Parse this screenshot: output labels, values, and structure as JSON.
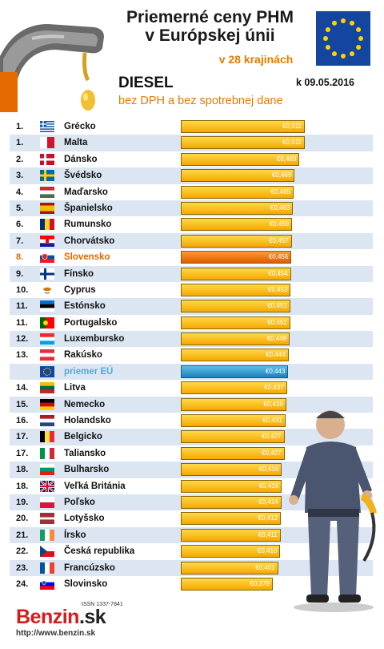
{
  "header": {
    "title_line1": "Priemerné ceny PHM",
    "title_line2": "v Európskej únii",
    "subtitle": "v 28 krajinách",
    "fuel": "DIESEL",
    "date": "k 09.05.2016",
    "note": "bez DPH a bez spotrebnej dane"
  },
  "colors": {
    "accent": "#e07b00",
    "bar": "#f5a800",
    "highlight_bar": "#e05a00",
    "eu_bar": "#1b7fb8",
    "row_alt": "#dce6f3"
  },
  "chart_data": {
    "type": "bar",
    "orientation": "horizontal",
    "unit": "€",
    "xlim": [
      0.0,
      0.511
    ],
    "grid": false,
    "rows": [
      {
        "rank": "1.",
        "country": "Grécko",
        "flag": "greece",
        "value": 0.511,
        "label": "€0,511"
      },
      {
        "rank": "1.",
        "country": "Malta",
        "flag": "malta",
        "value": 0.511,
        "label": "€0,511"
      },
      {
        "rank": "2.",
        "country": "Dánsko",
        "flag": "denmark",
        "value": 0.489,
        "label": "€0,489"
      },
      {
        "rank": "3.",
        "country": "Švédsko",
        "flag": "sweden",
        "value": 0.469,
        "label": "€0,469"
      },
      {
        "rank": "4.",
        "country": "Maďarsko",
        "flag": "hungary",
        "value": 0.465,
        "label": "€0,465"
      },
      {
        "rank": "5.",
        "country": "Španielsko",
        "flag": "spain",
        "value": 0.463,
        "label": "€0,463"
      },
      {
        "rank": "6.",
        "country": "Rumunsko",
        "flag": "romania",
        "value": 0.459,
        "label": "€0,459"
      },
      {
        "rank": "7.",
        "country": "Chorvátsko",
        "flag": "croatia",
        "value": 0.457,
        "label": "€0,457"
      },
      {
        "rank": "8.",
        "country": "Slovensko",
        "flag": "slovakia",
        "value": 0.456,
        "label": "€0,456",
        "highlight": true
      },
      {
        "rank": "9.",
        "country": "Fínsko",
        "flag": "finland",
        "value": 0.454,
        "label": "€0,454"
      },
      {
        "rank": "10.",
        "country": "Cyprus",
        "flag": "cyprus",
        "value": 0.453,
        "label": "€0,453"
      },
      {
        "rank": "11.",
        "country": "Estónsko",
        "flag": "estonia",
        "value": 0.451,
        "label": "€0,451"
      },
      {
        "rank": "11.",
        "country": "Portugalsko",
        "flag": "portugal",
        "value": 0.451,
        "label": "€0,451"
      },
      {
        "rank": "12.",
        "country": "Luxembursko",
        "flag": "luxembourg",
        "value": 0.449,
        "label": "€0,449"
      },
      {
        "rank": "13.",
        "country": "Rakúsko",
        "flag": "austria",
        "value": 0.444,
        "label": "€0,444"
      },
      {
        "rank": "",
        "country": "priemer EÚ",
        "flag": "eu",
        "value": 0.443,
        "label": "€0,443",
        "eu": true
      },
      {
        "rank": "14.",
        "country": "Litva",
        "flag": "lithuania",
        "value": 0.437,
        "label": "€0,437"
      },
      {
        "rank": "15.",
        "country": "Nemecko",
        "flag": "germany",
        "value": 0.435,
        "label": "€0,435"
      },
      {
        "rank": "16.",
        "country": "Holandsko",
        "flag": "netherlands",
        "value": 0.431,
        "label": "€0,431"
      },
      {
        "rank": "17.",
        "country": "Belgicko",
        "flag": "belgium",
        "value": 0.427,
        "label": "€0,427"
      },
      {
        "rank": "17.",
        "country": "Taliansko",
        "flag": "italy",
        "value": 0.427,
        "label": "€0,427"
      },
      {
        "rank": "18.",
        "country": "Bulharsko",
        "flag": "bulgaria",
        "value": 0.416,
        "label": "€0,416"
      },
      {
        "rank": "18.",
        "country": "Veľká Británia",
        "flag": "uk",
        "value": 0.416,
        "label": "€0,416"
      },
      {
        "rank": "19.",
        "country": "Poľsko",
        "flag": "poland",
        "value": 0.414,
        "label": "€0,414"
      },
      {
        "rank": "20.",
        "country": "Lotyšsko",
        "flag": "latvia",
        "value": 0.412,
        "label": "€0,412"
      },
      {
        "rank": "21.",
        "country": "Írsko",
        "flag": "ireland",
        "value": 0.411,
        "label": "€0,411"
      },
      {
        "rank": "22.",
        "country": "Česká republika",
        "flag": "czech",
        "value": 0.41,
        "label": "€0,410"
      },
      {
        "rank": "23.",
        "country": "Francúzsko",
        "flag": "france",
        "value": 0.401,
        "label": "€0,401"
      },
      {
        "rank": "24.",
        "country": "Slovinsko",
        "flag": "slovenia",
        "value": 0.379,
        "label": "€0,379"
      }
    ]
  },
  "footer": {
    "issn": "ISSN 1337-7841",
    "logo_main": "Benzin",
    "logo_tld": ".sk",
    "url": "http://www.benzin.sk"
  }
}
